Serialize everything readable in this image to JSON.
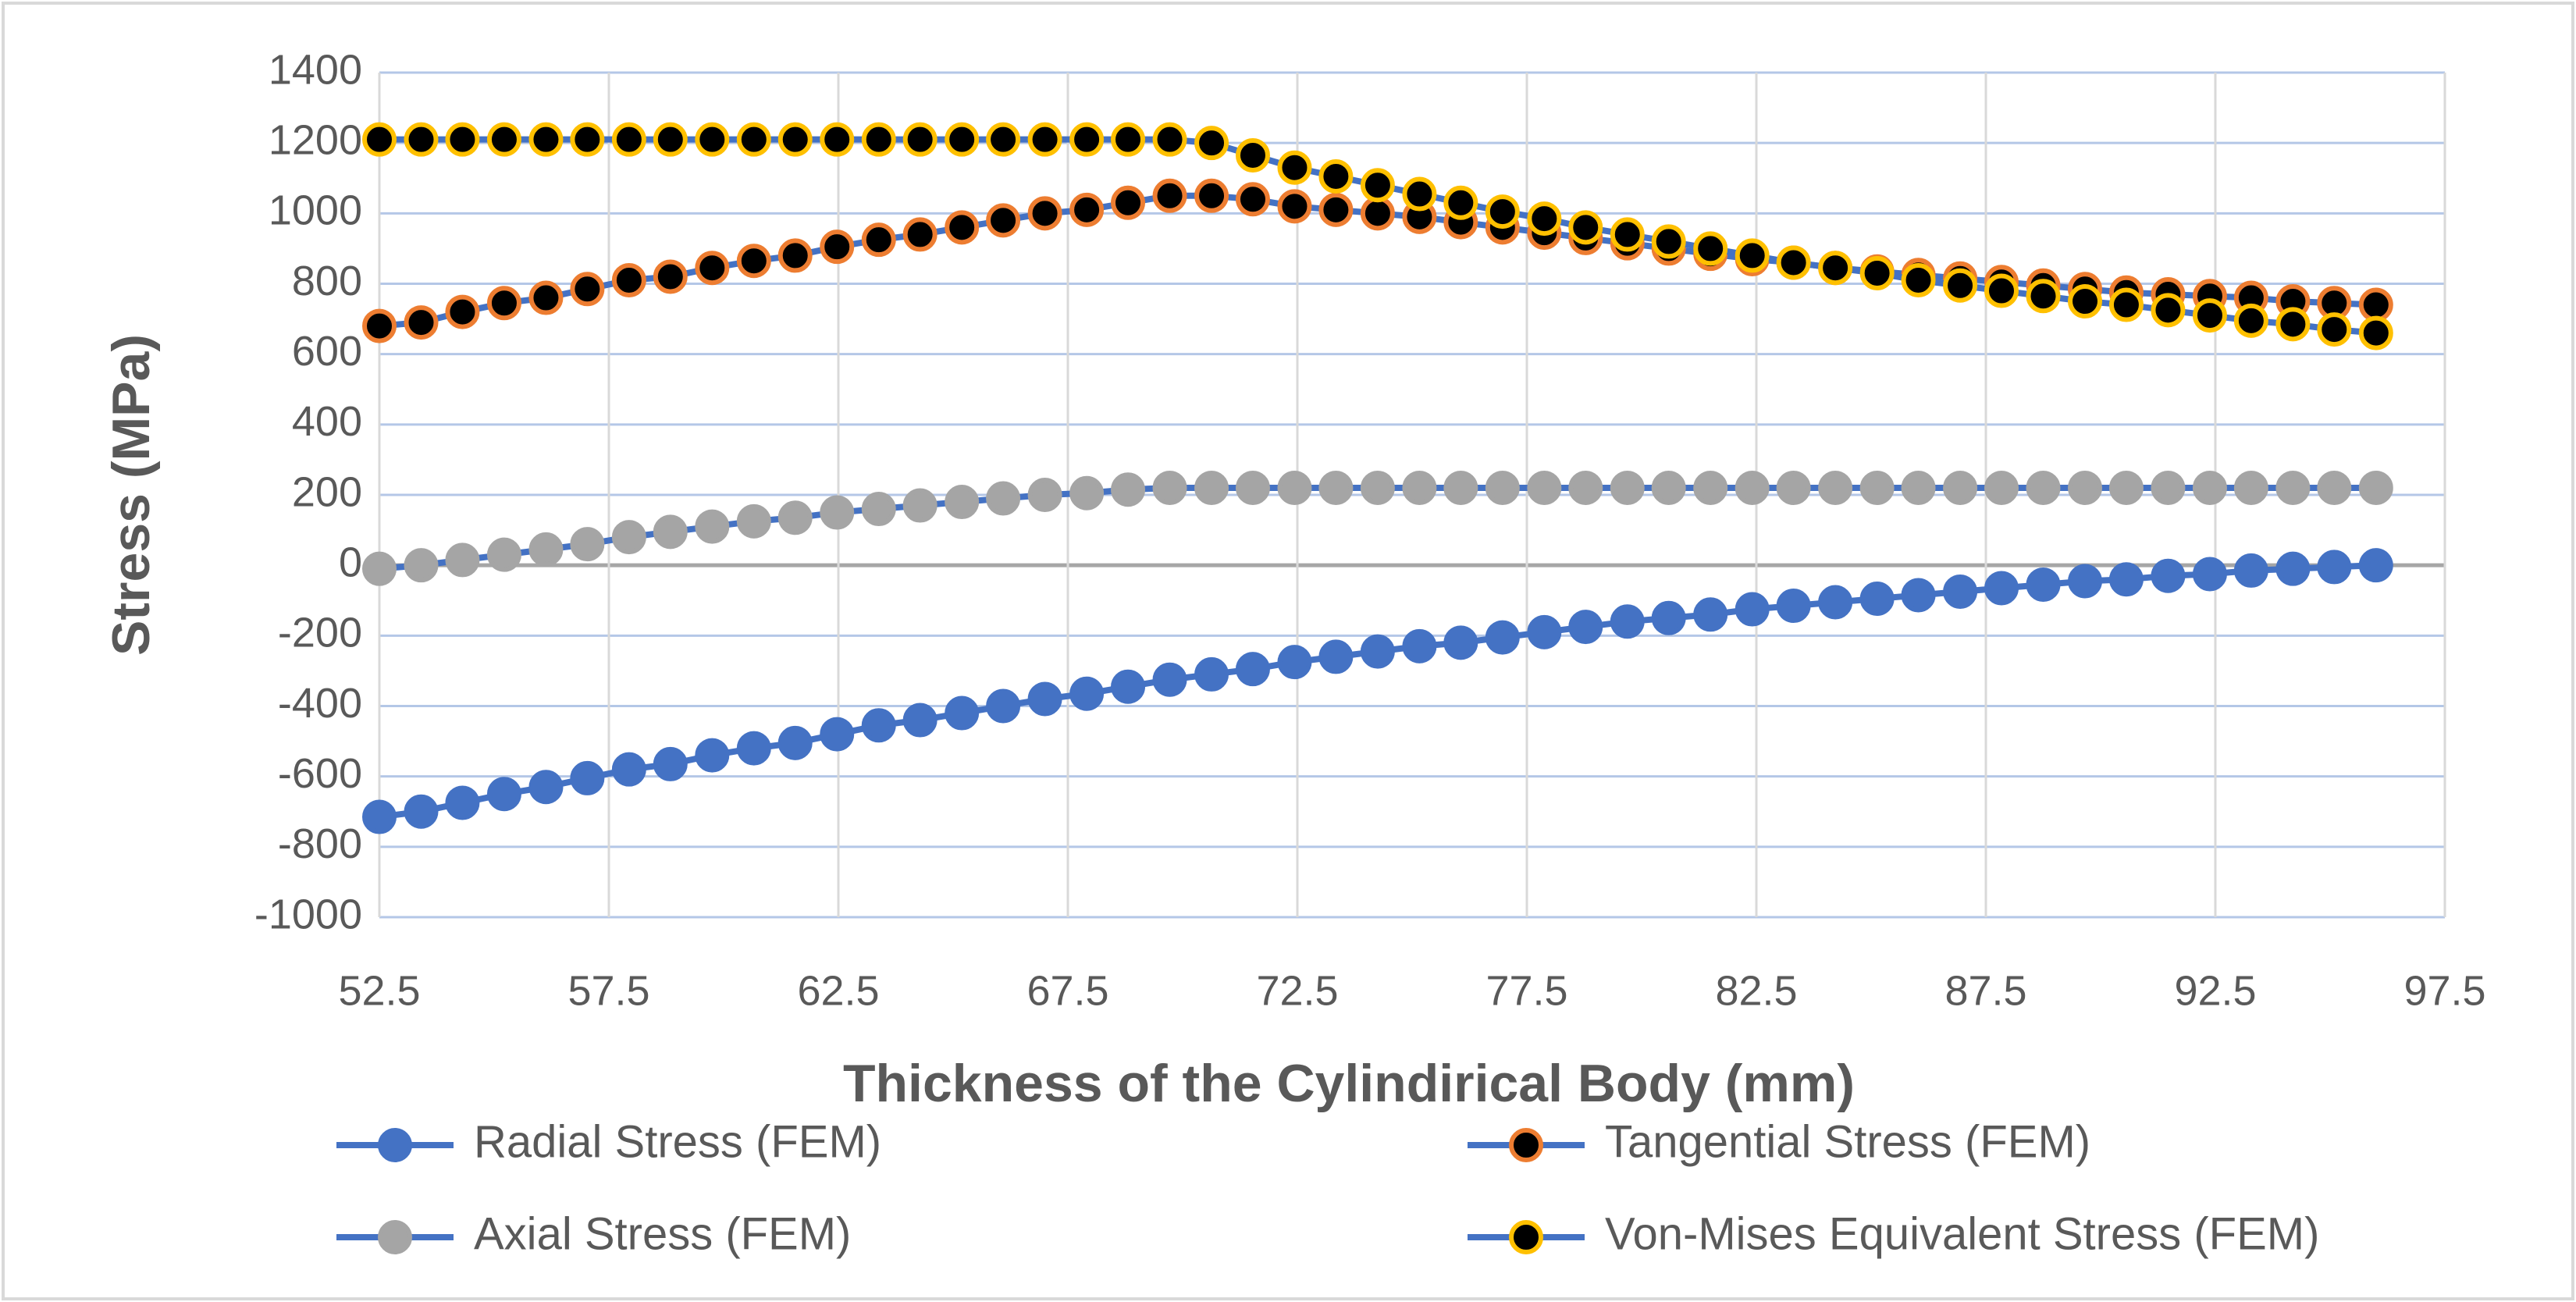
{
  "chart_data": {
    "type": "line",
    "x_label": "Thickness of the Cylindirical Body (mm)",
    "y_label": "Stress (MPa)",
    "x": [
      52.5,
      53.41,
      54.31,
      55.22,
      56.13,
      57.03,
      57.94,
      58.84,
      59.75,
      60.66,
      61.56,
      62.47,
      63.38,
      64.28,
      65.19,
      66.09,
      67.0,
      67.91,
      68.81,
      69.72,
      70.63,
      71.53,
      72.44,
      73.34,
      74.25,
      75.16,
      76.06,
      76.97,
      77.88,
      78.78,
      79.69,
      80.59,
      81.5,
      82.41,
      83.31,
      84.22,
      85.13,
      86.03,
      86.94,
      87.84,
      88.75,
      89.66,
      90.56,
      91.47,
      92.38,
      93.28,
      94.19,
      95.09,
      96.0
    ],
    "series": [
      {
        "name": "Radial Stress (FEM)",
        "color": "#4472c4",
        "marker_fill": "#4472c4",
        "marker_edge": "#4472c4",
        "values": [
          -715,
          -700,
          -675,
          -650,
          -630,
          -605,
          -580,
          -565,
          -540,
          -520,
          -505,
          -480,
          -455,
          -440,
          -420,
          -400,
          -380,
          -365,
          -345,
          -325,
          -310,
          -295,
          -275,
          -260,
          -245,
          -230,
          -220,
          -205,
          -190,
          -175,
          -160,
          -150,
          -140,
          -125,
          -115,
          -105,
          -95,
          -85,
          -75,
          -65,
          -55,
          -45,
          -40,
          -30,
          -25,
          -15,
          -10,
          -5,
          0
        ]
      },
      {
        "name": "Tangential Stress (FEM)",
        "color": "#4472c4",
        "marker_fill": "#000000",
        "marker_edge": "#ed7d31",
        "values": [
          680,
          690,
          720,
          745,
          760,
          785,
          810,
          820,
          845,
          865,
          880,
          905,
          925,
          940,
          960,
          980,
          1000,
          1010,
          1030,
          1050,
          1050,
          1040,
          1020,
          1010,
          1000,
          990,
          975,
          960,
          945,
          930,
          915,
          900,
          885,
          870,
          860,
          845,
          835,
          825,
          815,
          805,
          795,
          785,
          775,
          770,
          765,
          760,
          750,
          745,
          740
        ]
      },
      {
        "name": "Axial Stress (FEM)",
        "color": "#4472c4",
        "marker_fill": "#a5a5a5",
        "marker_edge": "#a5a5a5",
        "values": [
          -10,
          0,
          15,
          30,
          45,
          60,
          80,
          95,
          110,
          125,
          135,
          150,
          160,
          170,
          180,
          190,
          200,
          205,
          215,
          220,
          220,
          220,
          220,
          220,
          220,
          220,
          220,
          220,
          220,
          220,
          220,
          220,
          220,
          220,
          220,
          220,
          220,
          220,
          220,
          220,
          220,
          220,
          220,
          220,
          220,
          220,
          220,
          220,
          220
        ]
      },
      {
        "name": "Von-Mises Equivalent Stress (FEM)",
        "color": "#4472c4",
        "marker_fill": "#000000",
        "marker_edge": "#ffc000",
        "values": [
          1210,
          1210,
          1210,
          1210,
          1210,
          1210,
          1210,
          1210,
          1210,
          1210,
          1210,
          1210,
          1210,
          1210,
          1210,
          1210,
          1210,
          1210,
          1210,
          1210,
          1200,
          1165,
          1130,
          1105,
          1080,
          1055,
          1030,
          1005,
          985,
          960,
          940,
          920,
          900,
          880,
          860,
          845,
          830,
          810,
          795,
          780,
          765,
          750,
          740,
          725,
          710,
          695,
          685,
          670,
          660
        ]
      }
    ],
    "xlim": [
      52.5,
      97.5
    ],
    "xticks": [
      52.5,
      57.5,
      62.5,
      67.5,
      72.5,
      77.5,
      82.5,
      87.5,
      92.5,
      97.5
    ],
    "ylim": [
      -1000,
      1400
    ],
    "yticks": [
      -1000,
      -800,
      -600,
      -400,
      -200,
      0,
      200,
      400,
      600,
      800,
      1000,
      1200,
      1400
    ],
    "grid": true,
    "legend": "bottom"
  }
}
